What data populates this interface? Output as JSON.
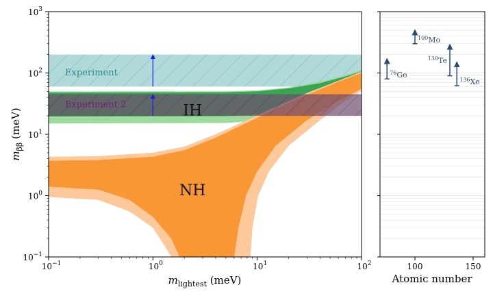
{
  "chart_data": [
    {
      "type": "area",
      "xlabel": "m_lightest (meV)",
      "ylabel": "m_ββ (meV)",
      "xscale": "log",
      "yscale": "log",
      "xlim": [
        0.1,
        100
      ],
      "ylim": [
        0.1,
        1000
      ],
      "xticks": [
        0.1,
        1,
        10,
        100
      ],
      "yticks": [
        0.1,
        1,
        10,
        100,
        1000
      ],
      "xtick_labels": [
        {
          "base": "10",
          "exp": "−1"
        },
        {
          "base": "10",
          "exp": "0"
        },
        {
          "base": "10",
          "exp": "1"
        },
        {
          "base": "10",
          "exp": "2"
        }
      ],
      "ytick_labels": [
        {
          "base": "10",
          "exp": "−1"
        },
        {
          "base": "10",
          "exp": "0"
        },
        {
          "base": "10",
          "exp": "1"
        },
        {
          "base": "10",
          "exp": "2"
        },
        {
          "base": "10",
          "exp": "3"
        }
      ],
      "region_labels": [
        {
          "text": "IH",
          "x": 2.4,
          "y": 25
        },
        {
          "text": "NH",
          "x": 2.4,
          "y": 1.25
        }
      ],
      "experiment_bands": [
        {
          "text": "Experiment",
          "ymin": 60,
          "ymax": 200,
          "color": "#7fbfbf",
          "label_color": "#2a8a8a",
          "arrow_x": 1.0
        },
        {
          "text": "Experiment 2",
          "ymin": 20,
          "ymax": 45,
          "color": "#b06bb0",
          "label_color": "#7a1a7a",
          "arrow_x": 1.0
        }
      ],
      "ih_band": {
        "color_inner": "#2e9e4a",
        "color_outer": "#98d898",
        "upper_outer": [
          [
            0.1,
            50
          ],
          [
            5,
            50.5
          ],
          [
            10,
            52
          ],
          [
            20,
            58
          ],
          [
            40,
            72
          ],
          [
            70,
            92
          ],
          [
            100,
            112
          ]
        ],
        "upper_inner": [
          [
            0.1,
            48
          ],
          [
            5,
            48.5
          ],
          [
            10,
            50
          ],
          [
            20,
            56
          ],
          [
            40,
            68
          ],
          [
            70,
            88
          ],
          [
            100,
            106
          ]
        ],
        "lower_inner": [
          [
            0.1,
            19.5
          ],
          [
            5,
            19.8
          ],
          [
            10,
            21
          ],
          [
            20,
            25
          ],
          [
            40,
            36
          ],
          [
            70,
            58
          ],
          [
            100,
            80
          ]
        ],
        "lower_outer": [
          [
            0.1,
            15
          ],
          [
            5,
            15.3
          ],
          [
            10,
            16.5
          ],
          [
            20,
            20.5
          ],
          [
            40,
            31
          ],
          [
            70,
            52
          ],
          [
            100,
            74
          ]
        ]
      },
      "nh_band": {
        "color_inner": "#f9952f",
        "color_outer": "#fdc89a",
        "upper_outer": [
          [
            0.1,
            4.3
          ],
          [
            0.3,
            4.4
          ],
          [
            1,
            5
          ],
          [
            2,
            6.3
          ],
          [
            4,
            10
          ],
          [
            8,
            17
          ],
          [
            15,
            28
          ],
          [
            30,
            47
          ],
          [
            60,
            75
          ],
          [
            100,
            105
          ]
        ],
        "upper_inner": [
          [
            0.1,
            3.7
          ],
          [
            0.3,
            3.8
          ],
          [
            1,
            4.3
          ],
          [
            2,
            5.5
          ],
          [
            4,
            8.8
          ],
          [
            8,
            15.5
          ],
          [
            15,
            26
          ],
          [
            30,
            44
          ],
          [
            60,
            72
          ],
          [
            100,
            100
          ]
        ],
        "lower_inner": [
          [
            0.1,
            1.4
          ],
          [
            0.3,
            1.25
          ],
          [
            0.6,
            0.85
          ],
          [
            1,
            0.45
          ],
          [
            1.5,
            0.2
          ],
          [
            1.8,
            0.1
          ]
        ],
        "lower_inner_right": [
          [
            6.0,
            0.1
          ],
          [
            6.6,
            0.3
          ],
          [
            7.8,
            1.0
          ],
          [
            10,
            2.5
          ],
          [
            15,
            6.5
          ],
          [
            30,
            17
          ],
          [
            60,
            35
          ],
          [
            100,
            55
          ]
        ],
        "lower_outer": [
          [
            0.1,
            0.95
          ],
          [
            0.3,
            0.85
          ],
          [
            0.6,
            0.55
          ],
          [
            1,
            0.3
          ],
          [
            1.3,
            0.15
          ],
          [
            1.5,
            0.1
          ]
        ],
        "lower_outer_right": [
          [
            8.6,
            0.1
          ],
          [
            9.0,
            0.3
          ],
          [
            10.2,
            1.0
          ],
          [
            13,
            2.5
          ],
          [
            20,
            6.5
          ],
          [
            40,
            17
          ],
          [
            70,
            35
          ],
          [
            100,
            50
          ]
        ]
      }
    },
    {
      "type": "scatter",
      "xlabel": "Atomic number",
      "xlim": [
        70,
        160
      ],
      "ylim": [
        0.1,
        1000
      ],
      "xticks": [
        100,
        150
      ],
      "xtick_labels": [
        "100",
        "150"
      ],
      "isotopes": [
        {
          "mass": "76",
          "symbol": "Ge",
          "z": 76,
          "ymin": 80,
          "ymax": 170
        },
        {
          "mass": "100",
          "symbol": "Mo",
          "z": 100,
          "ymin": 300,
          "ymax": 500
        },
        {
          "mass": "130",
          "symbol": "Te",
          "z": 130,
          "ymin": 90,
          "ymax": 290
        },
        {
          "mass": "136",
          "symbol": "Xe",
          "z": 136,
          "ymin": 62,
          "ymax": 150
        }
      ],
      "color": "#2b4c6f"
    }
  ]
}
